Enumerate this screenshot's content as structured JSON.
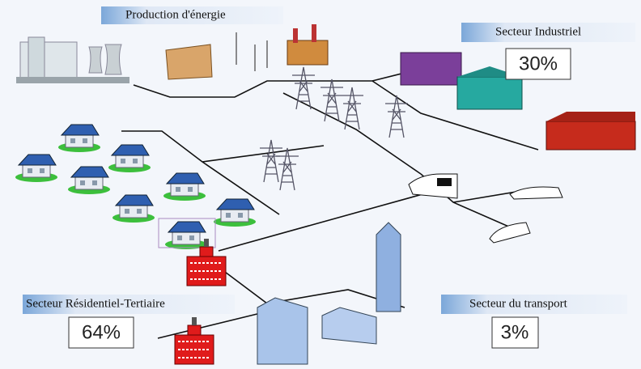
{
  "header": {
    "title": "Production d'énergie"
  },
  "sectors": [
    {
      "label": "Secteur Industriel",
      "share": "30%"
    },
    {
      "label": "Secteur Résidentiel-Tertiaire",
      "share": "64%"
    },
    {
      "label": "Secteur du transport",
      "share": "3%"
    }
  ]
}
